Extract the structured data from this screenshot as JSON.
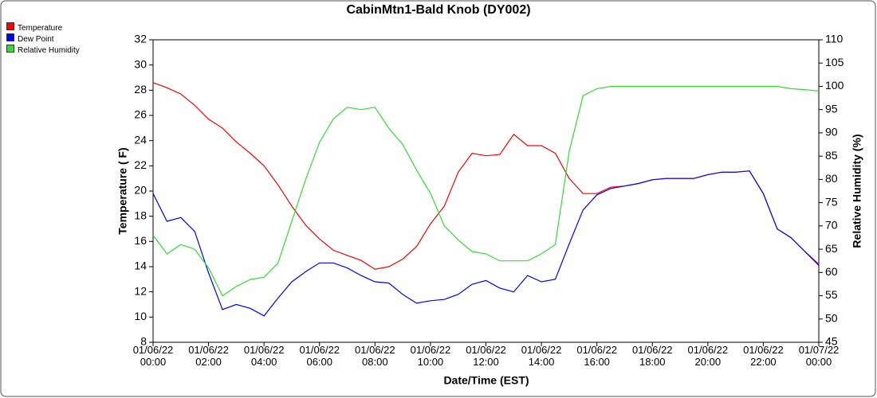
{
  "chart_data": {
    "type": "line",
    "title": "CabinMtn1-Bald Knob (DY002)",
    "xlabel": "Date/Time (EST)",
    "ylabel": "Temperature ( F)",
    "y2label": "Relative Humidity (%)",
    "x": [
      "01/06/22 00:00",
      "01/06/22 00:30",
      "01/06/22 01:00",
      "01/06/22 01:30",
      "01/06/22 02:00",
      "01/06/22 02:30",
      "01/06/22 03:00",
      "01/06/22 03:30",
      "01/06/22 04:00",
      "01/06/22 04:30",
      "01/06/22 05:00",
      "01/06/22 05:30",
      "01/06/22 06:00",
      "01/06/22 06:30",
      "01/06/22 07:00",
      "01/06/22 07:30",
      "01/06/22 08:00",
      "01/06/22 08:30",
      "01/06/22 09:00",
      "01/06/22 09:30",
      "01/06/22 10:00",
      "01/06/22 10:30",
      "01/06/22 11:00",
      "01/06/22 11:30",
      "01/06/22 12:00",
      "01/06/22 12:30",
      "01/06/22 13:00",
      "01/06/22 13:30",
      "01/06/22 14:00",
      "01/06/22 14:30",
      "01/06/22 15:00",
      "01/06/22 15:30",
      "01/06/22 16:00",
      "01/06/22 16:30",
      "01/06/22 17:00",
      "01/06/22 17:30",
      "01/06/22 18:00",
      "01/06/22 18:30",
      "01/06/22 19:00",
      "01/06/22 19:30",
      "01/06/22 20:00",
      "01/06/22 20:30",
      "01/06/22 21:00",
      "01/06/22 21:30",
      "01/06/22 22:00",
      "01/06/22 22:30",
      "01/06/22 23:00",
      "01/06/22 23:30",
      "01/07/22 00:00"
    ],
    "xticks": [
      "01/06/22 00:00",
      "01/06/22 02:00",
      "01/06/22 04:00",
      "01/06/22 06:00",
      "01/06/22 08:00",
      "01/06/22 10:00",
      "01/06/22 12:00",
      "01/06/22 14:00",
      "01/06/22 16:00",
      "01/06/22 18:00",
      "01/06/22 20:00",
      "01/06/22 22:00",
      "01/07/22 00:00"
    ],
    "ylim": [
      8,
      32
    ],
    "yticks": [
      8,
      10,
      12,
      14,
      16,
      18,
      20,
      22,
      24,
      26,
      28,
      30,
      32
    ],
    "y2lim": [
      45,
      110
    ],
    "y2ticks": [
      45,
      50,
      55,
      60,
      65,
      70,
      75,
      80,
      85,
      90,
      95,
      100,
      105,
      110
    ],
    "series": [
      {
        "name": "Temperature",
        "color": "#ff0000",
        "values": [
          28.6,
          28.2,
          27.7,
          26.8,
          25.7,
          25.0,
          23.9,
          23.0,
          22.0,
          20.5,
          18.8,
          17.3,
          16.2,
          15.3,
          14.9,
          14.5,
          13.8,
          14.0,
          14.6,
          15.6,
          17.4,
          18.8,
          21.5,
          23.0,
          22.8,
          22.9,
          24.5,
          23.6,
          23.6,
          23.0,
          21.0,
          19.8,
          19.8,
          20.3,
          20.4,
          20.6,
          20.9,
          21.0,
          21.0,
          21.0,
          21.3,
          21.5,
          21.5,
          21.6,
          19.8,
          17.0,
          16.3,
          15.2,
          14.2
        ]
      },
      {
        "name": "Dew Point",
        "color": "#0000ff",
        "values": [
          19.8,
          17.6,
          17.9,
          16.8,
          13.5,
          10.6,
          11.0,
          10.7,
          10.1,
          11.5,
          12.8,
          13.6,
          14.3,
          14.3,
          13.9,
          13.3,
          12.8,
          12.7,
          11.8,
          11.1,
          11.3,
          11.4,
          11.8,
          12.6,
          12.9,
          12.3,
          12.0,
          13.3,
          12.8,
          13.0,
          15.8,
          18.5,
          19.7,
          20.2,
          20.4,
          20.6,
          20.9,
          21.0,
          21.0,
          21.0,
          21.3,
          21.5,
          21.5,
          21.6,
          19.8,
          17.0,
          16.3,
          15.2,
          14.1
        ]
      },
      {
        "name": "Relative Humidity",
        "color": "#33dd33",
        "axis": "y2",
        "values": [
          68,
          64,
          66,
          65,
          61,
          55,
          57,
          58.5,
          59,
          62,
          71,
          80,
          88,
          93,
          95.5,
          95,
          95.5,
          91,
          87.5,
          82,
          77,
          70,
          67,
          64.5,
          64,
          62.5,
          62.5,
          62.5,
          64,
          66,
          86,
          98,
          99.5,
          100,
          100,
          100,
          100,
          100,
          100,
          100,
          100,
          100,
          100,
          100,
          100,
          100,
          99.5,
          99.3,
          99
        ]
      }
    ]
  }
}
